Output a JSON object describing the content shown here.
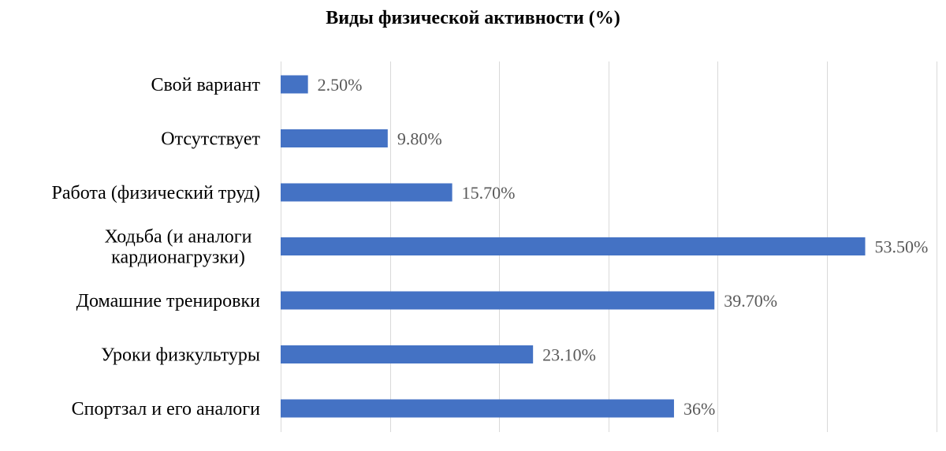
{
  "chart_data": {
    "type": "bar",
    "orientation": "horizontal",
    "title": "Виды физической активности (%)",
    "xlabel": "",
    "ylabel": "",
    "xlim": [
      0,
      60
    ],
    "grid": true,
    "legend": "none",
    "bar_color": "#4472C4",
    "grid_color": "#D9D9D9",
    "label_color": "#595959",
    "categories": [
      "Свой вариант",
      "Отсутствует",
      "Работа (физический труд)",
      "Ходьба (и аналоги кардионагрузки)",
      "Домашние тренировки",
      "Уроки физкультуры",
      "Спортзал и его аналоги"
    ],
    "category_lines": [
      [
        "Свой вариант"
      ],
      [
        "Отсутствует"
      ],
      [
        "Работа (физический труд)"
      ],
      [
        "Ходьба (и аналоги",
        "кардионагрузки)"
      ],
      [
        "Домашние тренировки"
      ],
      [
        "Уроки физкультуры"
      ],
      [
        "Спортзал и его аналоги"
      ]
    ],
    "values": [
      2.5,
      9.8,
      15.7,
      53.5,
      39.7,
      23.1,
      36
    ],
    "data_labels": [
      "2.50%",
      "9.80%",
      "15.70%",
      "53.50%",
      "39.70%",
      "23.10%",
      "36%"
    ]
  }
}
